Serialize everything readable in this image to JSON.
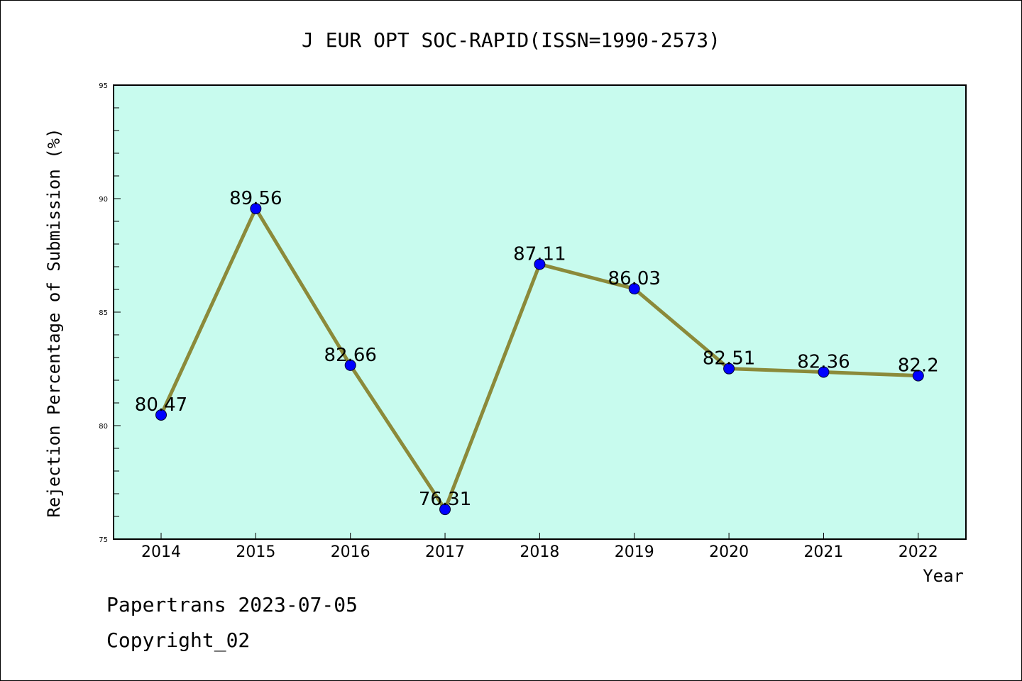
{
  "chart_data": {
    "type": "line",
    "title": "J EUR OPT SOC-RAPID(ISSN=1990-2573)",
    "xlabel": "Year",
    "ylabel": "Rejection Percentage of Submission (%)",
    "categories": [
      "2014",
      "2015",
      "2016",
      "2017",
      "2018",
      "2019",
      "2020",
      "2021",
      "2022"
    ],
    "series": [
      {
        "values": [
          80.47,
          89.56,
          82.66,
          76.31,
          87.11,
          86.03,
          82.51,
          82.36,
          82.2
        ],
        "labels": [
          "80.47",
          "89.56",
          "82.66",
          "76.31",
          "87.11",
          "86.03",
          "82.51",
          "82.36",
          "82.2"
        ]
      }
    ],
    "ylim": [
      75,
      95
    ],
    "yticks": [
      "75",
      "80",
      "85",
      "90",
      "95"
    ],
    "grid": false,
    "colors": {
      "plot_background": "#c8fbee",
      "line": "#8b8a3a",
      "marker": "#0000ff"
    }
  },
  "footer": {
    "line1": "Papertrans 2023-07-05",
    "line2": "Copyright_02"
  }
}
